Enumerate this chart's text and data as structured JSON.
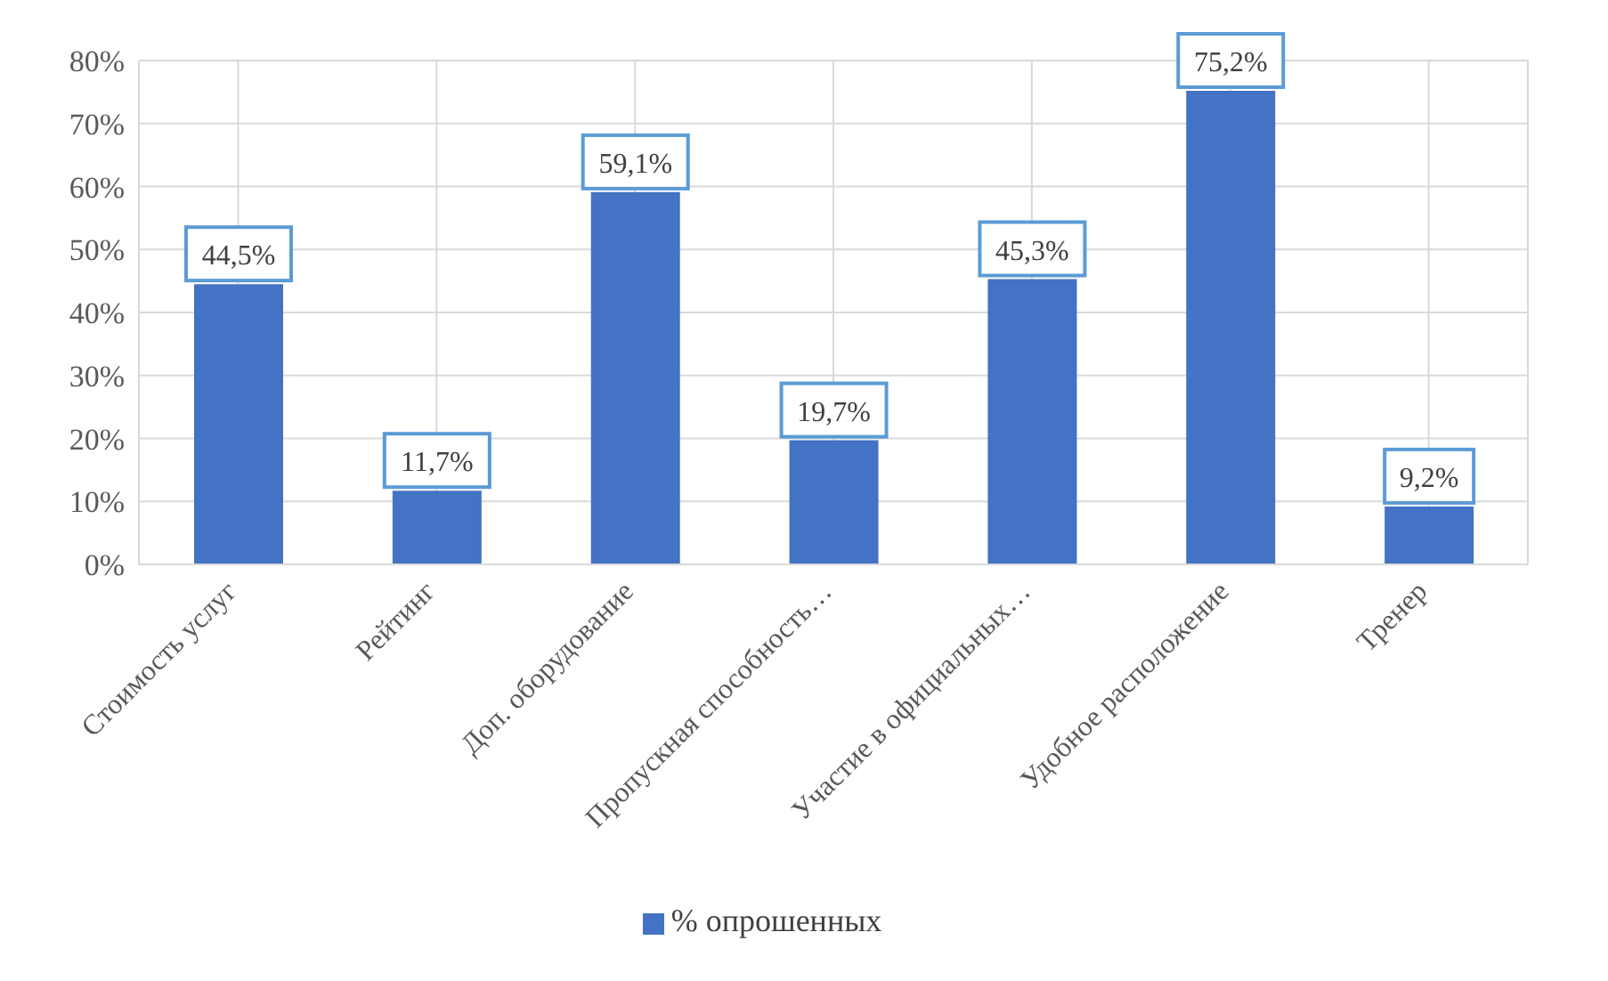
{
  "chart_data": {
    "type": "bar",
    "categories": [
      "Стоимость услуг",
      "Рейтинг",
      "Доп. оборудование",
      "Пропускная способность…",
      "Участие в официальных…",
      "Удобное расположение",
      "Тренер"
    ],
    "series": [
      {
        "name": "% опрошенных",
        "color": "#4472c4",
        "values": [
          44.5,
          11.7,
          59.1,
          19.7,
          45.3,
          75.2,
          9.2
        ],
        "value_labels": [
          "44,5%",
          "11,7%",
          "59,1%",
          "19,7%",
          "45,3%",
          "75,2%",
          "9,2%"
        ]
      }
    ],
    "ylim": [
      0,
      80
    ],
    "yticks": [
      {
        "value": 0,
        "label": "0%"
      },
      {
        "value": 10,
        "label": "10%"
      },
      {
        "value": 20,
        "label": "20%"
      },
      {
        "value": 30,
        "label": "30%"
      },
      {
        "value": 40,
        "label": "40%"
      },
      {
        "value": 50,
        "label": "50%"
      },
      {
        "value": 60,
        "label": "60%"
      },
      {
        "value": 70,
        "label": "70%"
      },
      {
        "value": 80,
        "label": "80%"
      }
    ],
    "grid": true,
    "legend": "bottom"
  }
}
